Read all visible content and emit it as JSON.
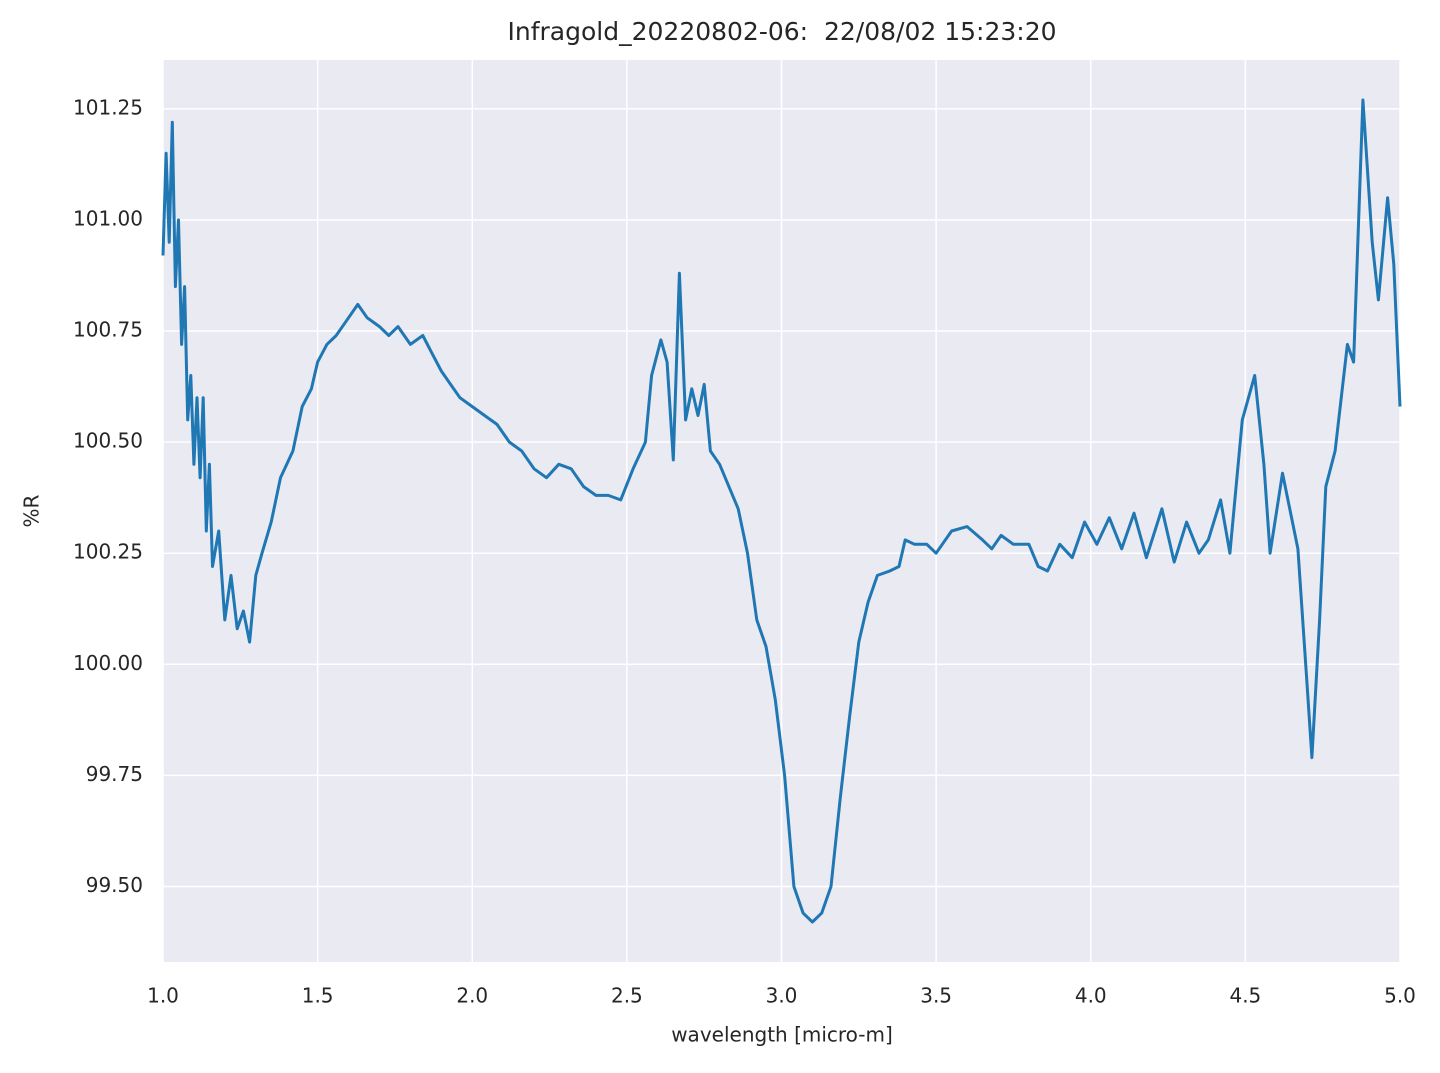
{
  "chart_data": {
    "type": "line",
    "title": "Infragold_20220802-06:  22/08/02 15:23:20",
    "xlabel": "wavelength [micro-m]",
    "ylabel": "%R",
    "color": "#1f77b4",
    "grid": true,
    "xlim": [
      1.0,
      5.0
    ],
    "ylim": [
      99.33,
      101.36
    ],
    "xticks": [
      {
        "value": 1.0,
        "label": "1.0"
      },
      1.5,
      {
        "value": 2.0,
        "label": "2.0"
      },
      2.5,
      {
        "value": 3.0,
        "label": "3.0"
      },
      3.5,
      {
        "value": 4.0,
        "label": "4.0"
      },
      4.5,
      {
        "value": 5.0,
        "label": "5.0"
      }
    ],
    "yticks": [
      {
        "value": 99.5,
        "label": "99.50"
      },
      99.75,
      {
        "value": 100.0,
        "label": "100.00"
      },
      100.25,
      {
        "value": 100.5,
        "label": "100.50"
      },
      100.75,
      {
        "value": 101.0,
        "label": "101.00"
      },
      101.25
    ],
    "x": [
      1.0,
      1.01,
      1.02,
      1.03,
      1.04,
      1.05,
      1.06,
      1.07,
      1.08,
      1.09,
      1.1,
      1.11,
      1.12,
      1.13,
      1.14,
      1.15,
      1.16,
      1.18,
      1.2,
      1.22,
      1.24,
      1.26,
      1.28,
      1.3,
      1.32,
      1.35,
      1.38,
      1.42,
      1.45,
      1.48,
      1.5,
      1.53,
      1.56,
      1.6,
      1.63,
      1.66,
      1.7,
      1.73,
      1.76,
      1.8,
      1.84,
      1.87,
      1.9,
      1.93,
      1.96,
      2.0,
      2.04,
      2.08,
      2.12,
      2.16,
      2.2,
      2.24,
      2.28,
      2.32,
      2.36,
      2.4,
      2.44,
      2.48,
      2.52,
      2.56,
      2.58,
      2.61,
      2.63,
      2.65,
      2.67,
      2.69,
      2.71,
      2.73,
      2.75,
      2.77,
      2.8,
      2.83,
      2.86,
      2.89,
      2.92,
      2.95,
      2.98,
      3.01,
      3.04,
      3.07,
      3.1,
      3.13,
      3.16,
      3.19,
      3.22,
      3.25,
      3.28,
      3.31,
      3.35,
      3.38,
      3.4,
      3.43,
      3.47,
      3.5,
      3.55,
      3.6,
      3.65,
      3.68,
      3.71,
      3.75,
      3.8,
      3.83,
      3.86,
      3.9,
      3.94,
      3.98,
      4.02,
      4.06,
      4.1,
      4.14,
      4.18,
      4.23,
      4.27,
      4.31,
      4.35,
      4.38,
      4.42,
      4.45,
      4.49,
      4.53,
      4.56,
      4.58,
      4.62,
      4.67,
      4.7,
      4.715,
      4.74,
      4.76,
      4.79,
      4.83,
      4.85,
      4.88,
      4.91,
      4.93,
      4.96,
      4.98,
      5.0
    ],
    "values": [
      100.92,
      101.15,
      100.95,
      101.22,
      100.85,
      101.0,
      100.72,
      100.85,
      100.55,
      100.65,
      100.45,
      100.6,
      100.42,
      100.6,
      100.3,
      100.45,
      100.22,
      100.3,
      100.1,
      100.2,
      100.08,
      100.12,
      100.05,
      100.2,
      100.25,
      100.32,
      100.42,
      100.48,
      100.58,
      100.62,
      100.68,
      100.72,
      100.74,
      100.78,
      100.81,
      100.78,
      100.76,
      100.74,
      100.76,
      100.72,
      100.74,
      100.7,
      100.66,
      100.63,
      100.6,
      100.58,
      100.56,
      100.54,
      100.5,
      100.48,
      100.44,
      100.42,
      100.45,
      100.44,
      100.4,
      100.38,
      100.38,
      100.37,
      100.44,
      100.5,
      100.65,
      100.73,
      100.68,
      100.46,
      100.88,
      100.55,
      100.62,
      100.56,
      100.63,
      100.48,
      100.45,
      100.4,
      100.35,
      100.25,
      100.1,
      100.04,
      99.92,
      99.75,
      99.5,
      99.44,
      99.42,
      99.44,
      99.5,
      99.7,
      99.88,
      100.05,
      100.14,
      100.2,
      100.21,
      100.22,
      100.28,
      100.27,
      100.27,
      100.25,
      100.3,
      100.31,
      100.28,
      100.26,
      100.29,
      100.27,
      100.27,
      100.22,
      100.21,
      100.27,
      100.24,
      100.32,
      100.27,
      100.33,
      100.26,
      100.34,
      100.24,
      100.35,
      100.23,
      100.32,
      100.25,
      100.28,
      100.37,
      100.25,
      100.55,
      100.65,
      100.45,
      100.25,
      100.43,
      100.26,
      99.95,
      99.79,
      100.1,
      100.4,
      100.48,
      100.72,
      100.68,
      101.27,
      100.95,
      100.82,
      101.05,
      100.9,
      100.58
    ]
  }
}
